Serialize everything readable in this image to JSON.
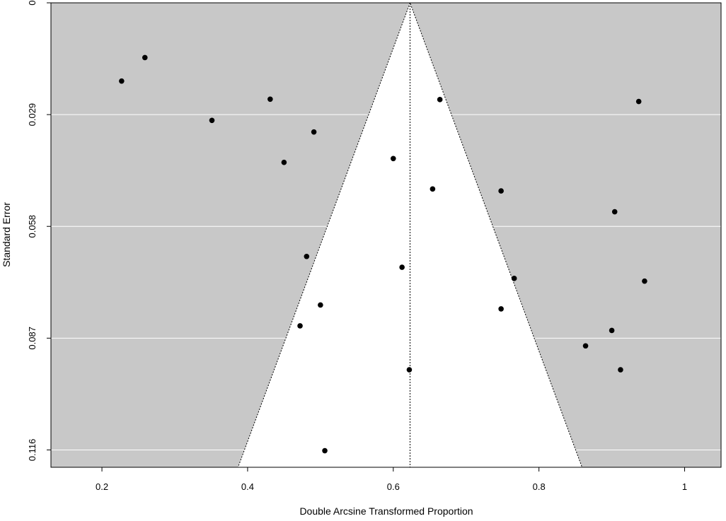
{
  "chart_data": {
    "type": "scatter",
    "subtype": "funnel plot",
    "title": "",
    "xlabel": "Double Arcsine Transformed Proportion",
    "ylabel": "Standard Error",
    "xlim": [
      0.13,
      1.05
    ],
    "ylim": [
      0.1205,
      0
    ],
    "y_axis_inverted": true,
    "x_ticks": [
      0.2,
      0.4,
      0.6,
      0.8,
      1
    ],
    "x_tick_labels": [
      "0.2",
      "0.4",
      "0.6",
      "0.8",
      "1"
    ],
    "y_ticks": [
      0,
      0.029,
      0.058,
      0.087,
      0.116
    ],
    "y_tick_labels": [
      "0",
      "0.029",
      "0.058",
      "0.087",
      "0.116"
    ],
    "funnel_center": 0.623,
    "funnel_z": 1.96,
    "background_color": "#c8c8c8",
    "funnel_fill": "#ffffff",
    "gridlines": "horizontal, white",
    "points": [
      {
        "x": 0.259,
        "y": 0.0142
      },
      {
        "x": 0.227,
        "y": 0.0203
      },
      {
        "x": 0.431,
        "y": 0.025
      },
      {
        "x": 0.351,
        "y": 0.0305
      },
      {
        "x": 0.491,
        "y": 0.0335
      },
      {
        "x": 0.45,
        "y": 0.0414
      },
      {
        "x": 0.6,
        "y": 0.0404
      },
      {
        "x": 0.664,
        "y": 0.0251
      },
      {
        "x": 0.937,
        "y": 0.0256
      },
      {
        "x": 0.654,
        "y": 0.0483
      },
      {
        "x": 0.748,
        "y": 0.0488
      },
      {
        "x": 0.904,
        "y": 0.0542
      },
      {
        "x": 0.481,
        "y": 0.0658
      },
      {
        "x": 0.612,
        "y": 0.0686
      },
      {
        "x": 0.766,
        "y": 0.0715
      },
      {
        "x": 0.945,
        "y": 0.0722
      },
      {
        "x": 0.5,
        "y": 0.0784
      },
      {
        "x": 0.748,
        "y": 0.0794
      },
      {
        "x": 0.472,
        "y": 0.0838
      },
      {
        "x": 0.9,
        "y": 0.085
      },
      {
        "x": 0.864,
        "y": 0.089
      },
      {
        "x": 0.622,
        "y": 0.0952
      },
      {
        "x": 0.912,
        "y": 0.0952
      },
      {
        "x": 0.506,
        "y": 0.1162
      }
    ]
  }
}
